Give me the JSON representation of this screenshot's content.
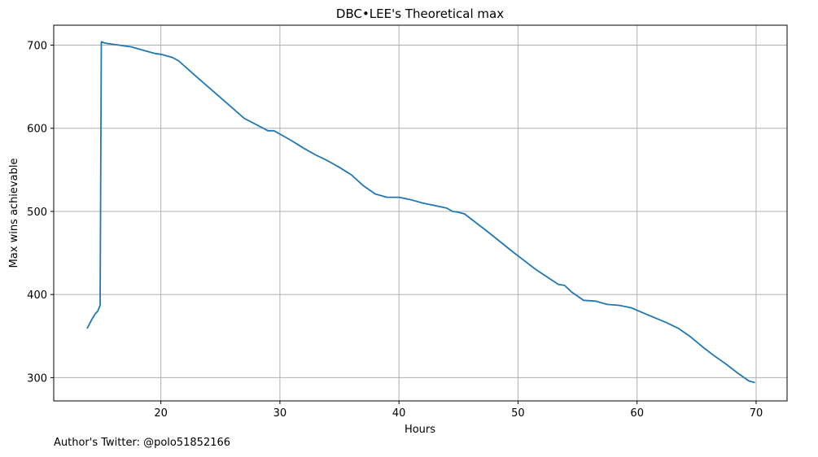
{
  "chart_data": {
    "type": "line",
    "title": "DBC•LEE's Theoretical max",
    "xlabel": "Hours",
    "ylabel": "Max wins achievable",
    "xlim": [
      11.0,
      72.6
    ],
    "ylim": [
      272,
      724
    ],
    "xticks": [
      20,
      30,
      40,
      50,
      60,
      70
    ],
    "yticks": [
      300,
      400,
      500,
      600,
      700
    ],
    "grid": true,
    "line_color": "#1f77b4",
    "series": [
      {
        "name": "Max wins achievable",
        "x": [
          13.8,
          14.2,
          14.5,
          14.7,
          14.9,
          15.0,
          15.2,
          15.5,
          16.0,
          16.5,
          17.0,
          17.5,
          18.0,
          18.5,
          19.0,
          19.5,
          20.0,
          20.5,
          21.0,
          21.5,
          23.0,
          25.0,
          27.0,
          29.0,
          29.5,
          30.0,
          31.0,
          32.0,
          33.0,
          34.0,
          35.0,
          36.0,
          37.0,
          38.0,
          39.0,
          40.0,
          41.0,
          42.0,
          43.0,
          44.0,
          44.5,
          45.0,
          45.5,
          47.5,
          49.5,
          51.5,
          53.4,
          53.9,
          54.5,
          55.5,
          56.5,
          57.5,
          58.5,
          59.5,
          60.5,
          61.5,
          62.5,
          63.5,
          64.5,
          65.5,
          66.5,
          67.5,
          68.5,
          69.4,
          69.9
        ],
        "y": [
          359,
          370,
          377,
          380,
          387,
          704,
          703,
          702,
          701,
          700,
          699,
          698,
          696,
          694,
          692,
          690,
          689,
          687,
          685,
          681,
          662,
          637,
          612,
          597,
          597,
          593,
          585,
          576,
          568,
          561,
          553,
          544,
          531,
          521,
          517,
          517,
          514,
          510,
          507,
          504,
          500,
          499,
          497,
          475,
          452,
          430,
          412,
          411,
          403,
          393,
          392,
          388,
          387,
          384,
          378,
          372,
          366,
          359,
          349,
          337,
          326,
          316,
          305,
          296,
          294
        ]
      }
    ]
  },
  "footer": {
    "text": "Author's Twitter: @polo51852166"
  }
}
